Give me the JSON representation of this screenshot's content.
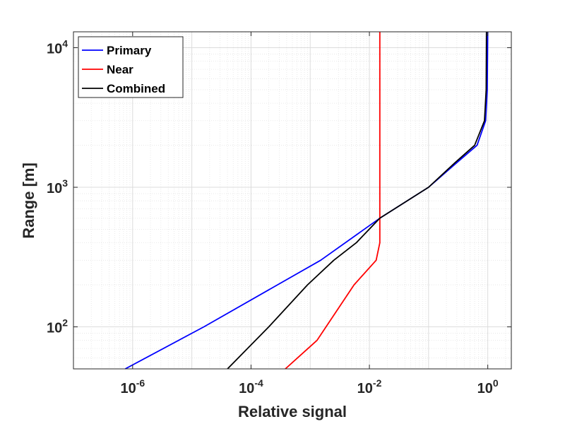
{
  "chart_data": {
    "type": "line",
    "xlabel": "Relative signal",
    "ylabel": "Range [m]",
    "xscale": "log",
    "yscale": "log",
    "xlim": [
      1e-07,
      2.5
    ],
    "ylim": [
      50,
      13000
    ],
    "xticks": [
      1e-06,
      0.0001,
      0.01,
      1
    ],
    "xtick_labels": [
      {
        "base": "10",
        "exp": "-6"
      },
      {
        "base": "10",
        "exp": "-4"
      },
      {
        "base": "10",
        "exp": "-2"
      },
      {
        "base": "10",
        "exp": "0"
      }
    ],
    "yticks": [
      100,
      1000,
      10000
    ],
    "ytick_labels": [
      {
        "base": "10",
        "exp": "2"
      },
      {
        "base": "10",
        "exp": "3"
      },
      {
        "base": "10",
        "exp": "4"
      }
    ],
    "grid": true,
    "minor_grid": true,
    "legend_position": "top-left",
    "series": [
      {
        "name": "Primary",
        "color": "#0000ff",
        "points": [
          {
            "x": 7.5e-07,
            "y": 50
          },
          {
            "x": 1.6e-05,
            "y": 100
          },
          {
            "x": 0.0015,
            "y": 300
          },
          {
            "x": 0.015,
            "y": 600
          },
          {
            "x": 0.1,
            "y": 1000
          },
          {
            "x": 0.3,
            "y": 1500
          },
          {
            "x": 0.66,
            "y": 2000
          },
          {
            "x": 0.92,
            "y": 3000
          },
          {
            "x": 0.98,
            "y": 5000
          },
          {
            "x": 1.0,
            "y": 13000
          }
        ]
      },
      {
        "name": "Near",
        "color": "#ff0000",
        "points": [
          {
            "x": 0.00038,
            "y": 50
          },
          {
            "x": 0.0013,
            "y": 80
          },
          {
            "x": 0.0055,
            "y": 200
          },
          {
            "x": 0.013,
            "y": 300
          },
          {
            "x": 0.015,
            "y": 400
          },
          {
            "x": 0.015,
            "y": 600
          },
          {
            "x": 0.015,
            "y": 2000
          },
          {
            "x": 0.015,
            "y": 13000
          }
        ]
      },
      {
        "name": "Combined",
        "color": "#000000",
        "points": [
          {
            "x": 4e-05,
            "y": 50
          },
          {
            "x": 0.0002,
            "y": 100
          },
          {
            "x": 0.0009,
            "y": 200
          },
          {
            "x": 0.0025,
            "y": 300
          },
          {
            "x": 0.006,
            "y": 400
          },
          {
            "x": 0.015,
            "y": 600
          },
          {
            "x": 0.1,
            "y": 1000
          },
          {
            "x": 0.28,
            "y": 1500
          },
          {
            "x": 0.6,
            "y": 2000
          },
          {
            "x": 0.88,
            "y": 3000
          },
          {
            "x": 0.94,
            "y": 5000
          },
          {
            "x": 0.95,
            "y": 13000
          }
        ]
      }
    ]
  }
}
